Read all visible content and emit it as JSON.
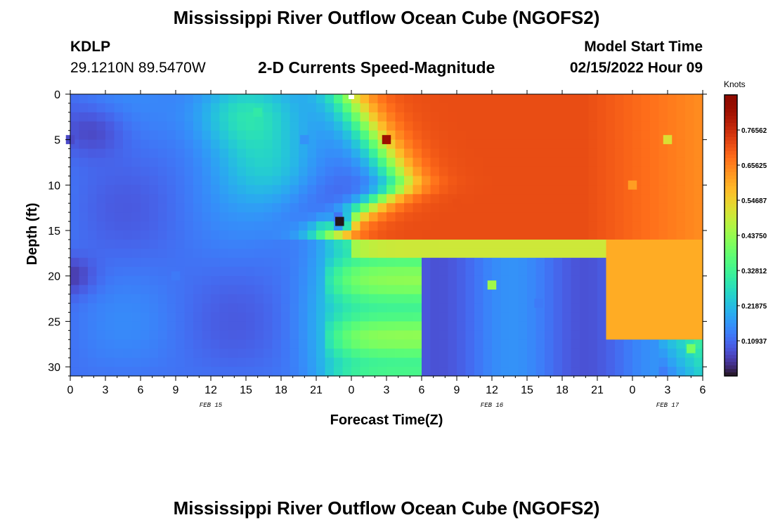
{
  "header": {
    "title": "Mississippi River Outflow Ocean Cube (NGOFS2)",
    "station_id": "KDLP",
    "station_coords": "29.1210N  89.5470W",
    "subtitle": "2-D Currents Speed-Magnitude",
    "model_start_label": "Model Start Time",
    "model_start_value": "02/15/2022 Hour 09"
  },
  "footer": {
    "title": "Mississippi River Outflow Ocean Cube (NGOFS2)"
  },
  "chart_data": {
    "type": "heatmap",
    "title": "2-D Currents Speed-Magnitude",
    "xlabel": "Forecast Time(Z)",
    "ylabel": "Depth (ft)",
    "x_tick_labels": [
      "0",
      "3",
      "6",
      "9",
      "12",
      "15",
      "18",
      "21",
      "0",
      "3",
      "6",
      "9",
      "12",
      "15",
      "18",
      "21",
      "0",
      "3",
      "6"
    ],
    "x_range_hours": [
      0,
      54
    ],
    "date_labels": [
      {
        "text": "FEB 15",
        "hour": 12
      },
      {
        "text": "FEB 16",
        "hour": 36
      },
      {
        "text": "FEB 17",
        "hour": 51
      }
    ],
    "y_tick_labels": [
      "0",
      "5",
      "10",
      "15",
      "20",
      "25",
      "30"
    ],
    "y_ticks": [
      0,
      5,
      10,
      15,
      20,
      25,
      30
    ],
    "y_range": [
      0,
      31
    ],
    "y_inverted": true,
    "colorbar": {
      "label": "Knots",
      "ticks": [
        "0.10937",
        "0.21875",
        "0.32812",
        "0.43750",
        "0.54687",
        "0.65625",
        "0.76562"
      ],
      "tick_values": [
        0.10937,
        0.21875,
        0.32812,
        0.4375,
        0.54687,
        0.65625,
        0.76562
      ],
      "range": [
        0,
        0.875
      ],
      "colormap": "turbo"
    },
    "key_points": [
      {
        "hour": 0,
        "depth": 5,
        "speed": 0.07
      },
      {
        "hour": 9,
        "depth": 20,
        "speed": 0.13
      },
      {
        "hour": 16,
        "depth": 2,
        "speed": 0.3
      },
      {
        "hour": 20,
        "depth": 5,
        "speed": 0.16
      },
      {
        "hour": 23,
        "depth": 14,
        "speed": 0.0
      },
      {
        "hour": 27,
        "depth": 5,
        "speed": 0.83
      },
      {
        "hour": 33,
        "depth": 12,
        "speed": 0.72
      },
      {
        "hour": 36,
        "depth": 21,
        "speed": 0.45
      },
      {
        "hour": 40,
        "depth": 23,
        "speed": 0.13
      },
      {
        "hour": 48,
        "depth": 10,
        "speed": 0.62
      },
      {
        "hour": 51,
        "depth": 5,
        "speed": 0.52
      },
      {
        "hour": 53,
        "depth": 28,
        "speed": 0.4
      }
    ],
    "marker": {
      "hour": 24,
      "depth": 0.3
    }
  }
}
